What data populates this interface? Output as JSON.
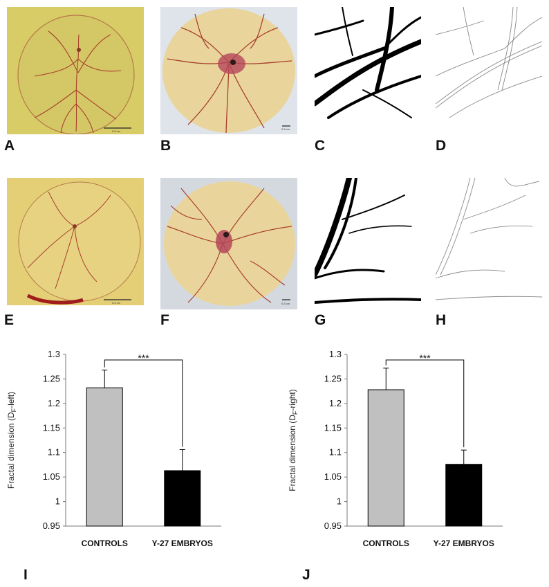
{
  "panels": {
    "A": {
      "label": "A",
      "scale_text": "0.5 cm"
    },
    "B": {
      "label": "B",
      "scale_text": "0.5 cm"
    },
    "C": {
      "label": "C"
    },
    "D": {
      "label": "D"
    },
    "E": {
      "label": "E",
      "scale_text": "0.5 cm"
    },
    "F": {
      "label": "F",
      "scale_text": "0.5 cm"
    },
    "G": {
      "label": "G"
    },
    "H": {
      "label": "H"
    },
    "I": {
      "label": "I"
    },
    "J": {
      "label": "J"
    }
  },
  "colors": {
    "yolk_yellow": "#d9cf67",
    "vessel_red": "#a8402c",
    "plate_cream": "#efd9a3",
    "control_bar": "#c0c0c0",
    "treated_bar": "#000000"
  },
  "chart_data": [
    {
      "type": "bar",
      "panel": "I",
      "categories": [
        "CONTROLS",
        "Y-27 EMBRYOS"
      ],
      "values": [
        1.232,
        1.063
      ],
      "errors": [
        0.036,
        0.043
      ],
      "ylabel_main": "Fractal dimension (D",
      "ylabel_sub": "F",
      "ylabel_end": "-left)",
      "ylim": [
        0.95,
        1.3
      ],
      "yticks": [
        "0.95",
        "1",
        "1.05",
        "1.1",
        "1.15",
        "1.2",
        "1.25",
        "1.3"
      ],
      "significance": "***",
      "grid": false
    },
    {
      "type": "bar",
      "panel": "J",
      "categories": [
        "CONTROLS",
        "Y-27 EMBRYOS"
      ],
      "values": [
        1.228,
        1.076
      ],
      "errors": [
        0.044,
        0.029
      ],
      "ylabel_main": "Fractal dimension (D",
      "ylabel_sub": "F",
      "ylabel_end": "-right)",
      "ylim": [
        0.95,
        1.3
      ],
      "yticks": [
        "0.95",
        "1",
        "1.05",
        "1.1",
        "1.15",
        "1.2",
        "1.25",
        "1.3"
      ],
      "significance": "***",
      "grid": false
    }
  ]
}
